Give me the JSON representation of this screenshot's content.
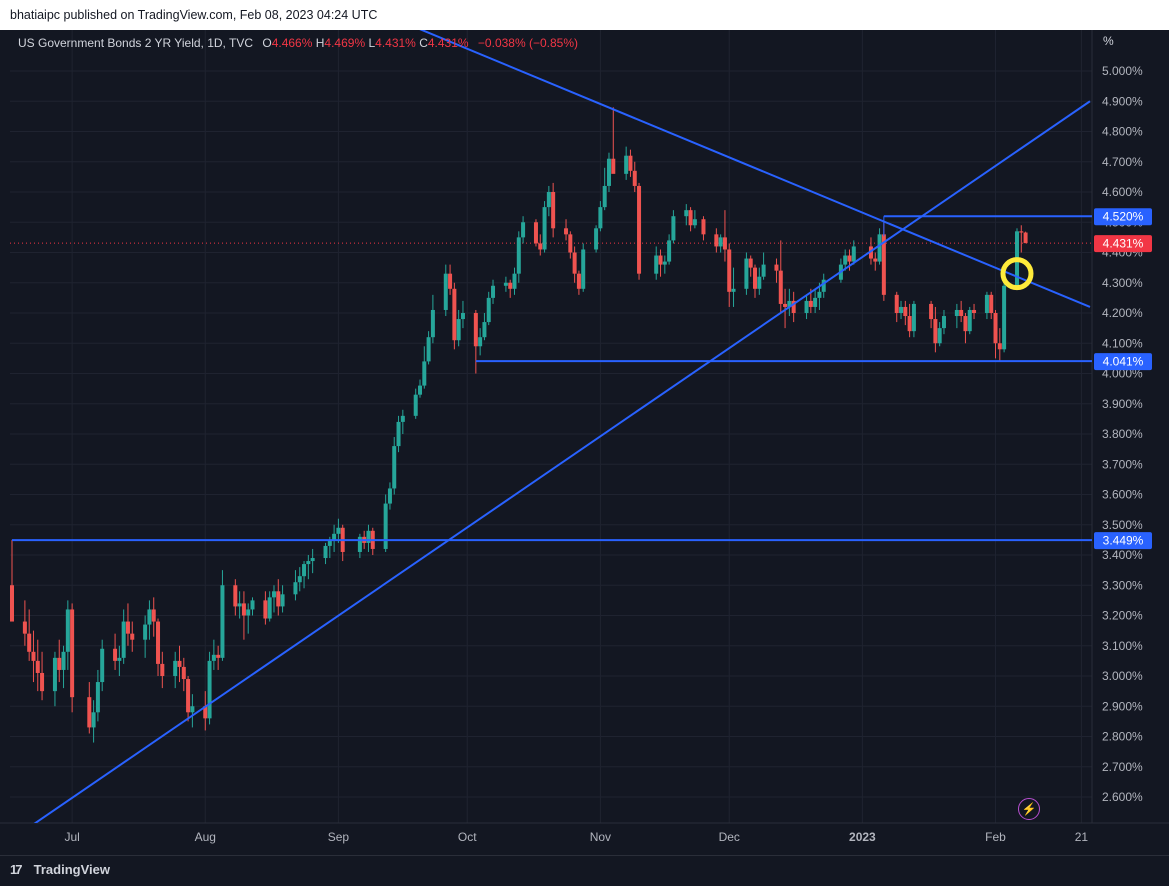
{
  "header": {
    "published": "bhatiaipc published on TradingView.com, Feb 08, 2023 04:24 UTC"
  },
  "legend": {
    "symbol": "US Government Bonds 2 YR Yield, 1D, TVC",
    "o_label": "O",
    "o_value": "4.466%",
    "h_label": "H",
    "h_value": "4.469%",
    "l_label": "L",
    "l_value": "4.431%",
    "c_label": "C",
    "c_value": "4.431%",
    "change": "−0.038% (−0.85%)"
  },
  "axis": {
    "unit": "%"
  },
  "footer": {
    "brand": "TradingView",
    "logo_mark": "17"
  },
  "colors": {
    "background": "#131722",
    "grid": "#1f2330",
    "up": "#26a69a",
    "down": "#ef5350",
    "trendline": "#2962ff",
    "highlight_circle": "#ffeb3b",
    "price_label_bg": "#f23645"
  },
  "chart_data": {
    "type": "candlestick",
    "title": "US Government Bonds 2 YR Yield, 1D, TVC",
    "ylabel": "%",
    "ylim": [
      2.52,
      5.15
    ],
    "y_ticks": [
      "5.000%",
      "4.900%",
      "4.800%",
      "4.700%",
      "4.600%",
      "4.500%",
      "4.400%",
      "4.300%",
      "4.200%",
      "4.100%",
      "4.000%",
      "3.900%",
      "3.800%",
      "3.700%",
      "3.600%",
      "3.500%",
      "3.400%",
      "3.300%",
      "3.200%",
      "3.100%",
      "3.000%",
      "2.900%",
      "2.800%",
      "2.700%",
      "2.600%"
    ],
    "y_tick_values": [
      5.0,
      4.9,
      4.8,
      4.7,
      4.6,
      4.5,
      4.4,
      4.3,
      4.2,
      4.1,
      4.0,
      3.9,
      3.8,
      3.7,
      3.6,
      3.5,
      3.4,
      3.3,
      3.2,
      3.1,
      3.0,
      2.9,
      2.8,
      2.7,
      2.6
    ],
    "x_ticks": [
      "Jul",
      "Aug",
      "Sep",
      "Oct",
      "Nov",
      "Dec",
      "2023",
      "Feb",
      "21"
    ],
    "x_tick_dates": [
      "2022-07-01",
      "2022-08-01",
      "2022-09-01",
      "2022-10-01",
      "2022-11-01",
      "2022-12-01",
      "2023-01-01",
      "2023-02-01",
      "2023-02-21"
    ],
    "x_range": [
      "2022-06-17",
      "2023-02-23"
    ],
    "grid": true,
    "candles": [
      [
        "2022-06-17",
        3.3,
        3.45,
        3.2,
        3.18
      ],
      [
        "2022-06-20",
        3.18,
        3.25,
        3.1,
        3.14
      ],
      [
        "2022-06-21",
        3.14,
        3.22,
        3.05,
        3.08
      ],
      [
        "2022-06-22",
        3.08,
        3.15,
        2.98,
        3.05
      ],
      [
        "2022-06-23",
        3.05,
        3.12,
        2.95,
        3.01
      ],
      [
        "2022-06-24",
        3.01,
        3.08,
        2.92,
        2.95
      ],
      [
        "2022-06-27",
        2.95,
        3.08,
        2.9,
        3.06
      ],
      [
        "2022-06-28",
        3.06,
        3.12,
        2.98,
        3.02
      ],
      [
        "2022-06-29",
        3.02,
        3.1,
        2.96,
        3.08
      ],
      [
        "2022-06-30",
        3.08,
        3.25,
        3.02,
        3.22
      ],
      [
        "2022-07-01",
        3.22,
        3.24,
        2.88,
        2.93
      ],
      [
        "2022-07-05",
        2.93,
        2.98,
        2.81,
        2.83
      ],
      [
        "2022-07-06",
        2.83,
        2.92,
        2.78,
        2.88
      ],
      [
        "2022-07-07",
        2.88,
        3.02,
        2.85,
        2.98
      ],
      [
        "2022-07-08",
        2.98,
        3.12,
        2.95,
        3.09
      ],
      [
        "2022-07-11",
        3.09,
        3.14,
        3.02,
        3.05
      ],
      [
        "2022-07-12",
        3.05,
        3.1,
        3.0,
        3.06
      ],
      [
        "2022-07-13",
        3.06,
        3.22,
        3.04,
        3.18
      ],
      [
        "2022-07-14",
        3.18,
        3.24,
        3.1,
        3.14
      ],
      [
        "2022-07-15",
        3.14,
        3.18,
        3.08,
        3.12
      ],
      [
        "2022-07-18",
        3.12,
        3.2,
        3.06,
        3.17
      ],
      [
        "2022-07-19",
        3.17,
        3.25,
        3.12,
        3.22
      ],
      [
        "2022-07-20",
        3.22,
        3.26,
        3.13,
        3.18
      ],
      [
        "2022-07-21",
        3.18,
        3.19,
        3.0,
        3.04
      ],
      [
        "2022-07-22",
        3.04,
        3.08,
        2.96,
        3.0
      ],
      [
        "2022-07-25",
        3.0,
        3.08,
        2.96,
        3.05
      ],
      [
        "2022-07-26",
        3.05,
        3.1,
        2.98,
        3.03
      ],
      [
        "2022-07-27",
        3.03,
        3.06,
        2.95,
        2.99
      ],
      [
        "2022-07-28",
        2.99,
        3.0,
        2.85,
        2.88
      ],
      [
        "2022-07-29",
        2.88,
        2.94,
        2.83,
        2.9
      ],
      [
        "2022-08-01",
        2.9,
        2.95,
        2.82,
        2.86
      ],
      [
        "2022-08-02",
        2.86,
        3.08,
        2.84,
        3.05
      ],
      [
        "2022-08-03",
        3.05,
        3.12,
        3.02,
        3.07
      ],
      [
        "2022-08-04",
        3.07,
        3.1,
        3.02,
        3.06
      ],
      [
        "2022-08-05",
        3.06,
        3.35,
        3.05,
        3.3
      ],
      [
        "2022-08-08",
        3.3,
        3.32,
        3.2,
        3.23
      ],
      [
        "2022-08-09",
        3.23,
        3.28,
        3.19,
        3.24
      ],
      [
        "2022-08-10",
        3.24,
        3.28,
        3.12,
        3.2
      ],
      [
        "2022-08-11",
        3.2,
        3.24,
        3.14,
        3.22
      ],
      [
        "2022-08-12",
        3.22,
        3.26,
        3.2,
        3.25
      ],
      [
        "2022-08-15",
        3.25,
        3.28,
        3.17,
        3.19
      ],
      [
        "2022-08-16",
        3.19,
        3.28,
        3.18,
        3.26
      ],
      [
        "2022-08-17",
        3.26,
        3.3,
        3.21,
        3.28
      ],
      [
        "2022-08-18",
        3.28,
        3.32,
        3.2,
        3.23
      ],
      [
        "2022-08-19",
        3.23,
        3.3,
        3.21,
        3.27
      ],
      [
        "2022-08-22",
        3.27,
        3.35,
        3.25,
        3.31
      ],
      [
        "2022-08-23",
        3.31,
        3.36,
        3.28,
        3.33
      ],
      [
        "2022-08-24",
        3.33,
        3.38,
        3.29,
        3.37
      ],
      [
        "2022-08-25",
        3.37,
        3.4,
        3.32,
        3.38
      ],
      [
        "2022-08-26",
        3.38,
        3.42,
        3.34,
        3.39
      ],
      [
        "2022-08-29",
        3.39,
        3.44,
        3.37,
        3.43
      ],
      [
        "2022-08-30",
        3.43,
        3.46,
        3.39,
        3.45
      ],
      [
        "2022-08-31",
        3.45,
        3.5,
        3.41,
        3.47
      ],
      [
        "2022-09-01",
        3.47,
        3.52,
        3.44,
        3.49
      ],
      [
        "2022-09-02",
        3.49,
        3.5,
        3.38,
        3.41
      ],
      [
        "2022-09-06",
        3.41,
        3.47,
        3.39,
        3.46
      ],
      [
        "2022-09-07",
        3.46,
        3.48,
        3.42,
        3.44
      ],
      [
        "2022-09-08",
        3.44,
        3.5,
        3.41,
        3.48
      ],
      [
        "2022-09-09",
        3.48,
        3.49,
        3.4,
        3.42
      ],
      [
        "2022-09-12",
        3.42,
        3.6,
        3.41,
        3.57
      ],
      [
        "2022-09-13",
        3.57,
        3.64,
        3.55,
        3.62
      ],
      [
        "2022-09-14",
        3.62,
        3.79,
        3.6,
        3.76
      ],
      [
        "2022-09-15",
        3.76,
        3.86,
        3.74,
        3.84
      ],
      [
        "2022-09-16",
        3.84,
        3.88,
        3.8,
        3.86
      ],
      [
        "2022-09-19",
        3.86,
        3.95,
        3.85,
        3.93
      ],
      [
        "2022-09-20",
        3.93,
        3.98,
        3.92,
        3.96
      ],
      [
        "2022-09-21",
        3.96,
        4.09,
        3.95,
        4.04
      ],
      [
        "2022-09-22",
        4.04,
        4.14,
        4.03,
        4.12
      ],
      [
        "2022-09-23",
        4.12,
        4.26,
        4.1,
        4.21
      ],
      [
        "2022-09-26",
        4.21,
        4.36,
        4.19,
        4.33
      ],
      [
        "2022-09-27",
        4.33,
        4.36,
        4.26,
        4.28
      ],
      [
        "2022-09-28",
        4.28,
        4.3,
        4.08,
        4.11
      ],
      [
        "2022-09-29",
        4.11,
        4.21,
        4.09,
        4.18
      ],
      [
        "2022-09-30",
        4.18,
        4.24,
        4.15,
        4.2
      ],
      [
        "2022-10-03",
        4.2,
        4.21,
        4.0,
        4.09
      ],
      [
        "2022-10-04",
        4.09,
        4.15,
        4.06,
        4.12
      ],
      [
        "2022-10-05",
        4.12,
        4.2,
        4.11,
        4.17
      ],
      [
        "2022-10-06",
        4.17,
        4.27,
        4.16,
        4.25
      ],
      [
        "2022-10-07",
        4.25,
        4.31,
        4.23,
        4.29
      ],
      [
        "2022-10-10",
        4.29,
        4.32,
        4.27,
        4.3
      ],
      [
        "2022-10-11",
        4.3,
        4.31,
        4.25,
        4.28
      ],
      [
        "2022-10-12",
        4.28,
        4.35,
        4.26,
        4.33
      ],
      [
        "2022-10-13",
        4.33,
        4.47,
        4.3,
        4.45
      ],
      [
        "2022-10-14",
        4.45,
        4.52,
        4.43,
        4.5
      ],
      [
        "2022-10-17",
        4.5,
        4.51,
        4.42,
        4.43
      ],
      [
        "2022-10-18",
        4.43,
        4.46,
        4.39,
        4.41
      ],
      [
        "2022-10-19",
        4.41,
        4.57,
        4.4,
        4.55
      ],
      [
        "2022-10-20",
        4.55,
        4.62,
        4.52,
        4.6
      ],
      [
        "2022-10-21",
        4.6,
        4.63,
        4.45,
        4.48
      ],
      [
        "2022-10-24",
        4.48,
        4.51,
        4.44,
        4.46
      ],
      [
        "2022-10-25",
        4.46,
        4.47,
        4.38,
        4.4
      ],
      [
        "2022-10-26",
        4.4,
        4.42,
        4.3,
        4.33
      ],
      [
        "2022-10-27",
        4.33,
        4.34,
        4.26,
        4.28
      ],
      [
        "2022-10-28",
        4.28,
        4.43,
        4.27,
        4.41
      ],
      [
        "2022-10-31",
        4.41,
        4.49,
        4.4,
        4.48
      ],
      [
        "2022-11-01",
        4.48,
        4.57,
        4.47,
        4.55
      ],
      [
        "2022-11-02",
        4.55,
        4.68,
        4.54,
        4.62
      ],
      [
        "2022-11-03",
        4.62,
        4.73,
        4.6,
        4.71
      ],
      [
        "2022-11-04",
        4.71,
        4.88,
        4.67,
        4.66
      ],
      [
        "2022-11-07",
        4.66,
        4.75,
        4.64,
        4.72
      ],
      [
        "2022-11-08",
        4.72,
        4.74,
        4.65,
        4.67
      ],
      [
        "2022-11-09",
        4.67,
        4.7,
        4.6,
        4.62
      ],
      [
        "2022-11-10",
        4.62,
        4.63,
        4.31,
        4.33
      ],
      [
        "2022-11-14",
        4.33,
        4.42,
        4.31,
        4.39
      ],
      [
        "2022-11-15",
        4.39,
        4.41,
        4.32,
        4.36
      ],
      [
        "2022-11-16",
        4.36,
        4.39,
        4.33,
        4.37
      ],
      [
        "2022-11-17",
        4.37,
        4.46,
        4.36,
        4.44
      ],
      [
        "2022-11-18",
        4.44,
        4.54,
        4.43,
        4.52
      ],
      [
        "2022-11-21",
        4.52,
        4.56,
        4.49,
        4.54
      ],
      [
        "2022-11-22",
        4.54,
        4.55,
        4.47,
        4.49
      ],
      [
        "2022-11-23",
        4.49,
        4.54,
        4.48,
        4.51
      ],
      [
        "2022-11-25",
        4.51,
        4.52,
        4.44,
        4.46
      ],
      [
        "2022-11-28",
        4.46,
        4.48,
        4.4,
        4.42
      ],
      [
        "2022-11-29",
        4.42,
        4.46,
        4.4,
        4.45
      ],
      [
        "2022-11-30",
        4.45,
        4.54,
        4.37,
        4.41
      ],
      [
        "2022-12-01",
        4.41,
        4.43,
        4.22,
        4.27
      ],
      [
        "2022-12-02",
        4.27,
        4.35,
        4.22,
        4.28
      ],
      [
        "2022-12-05",
        4.28,
        4.4,
        4.26,
        4.38
      ],
      [
        "2022-12-06",
        4.38,
        4.39,
        4.32,
        4.35
      ],
      [
        "2022-12-07",
        4.35,
        4.36,
        4.25,
        4.28
      ],
      [
        "2022-12-08",
        4.28,
        4.35,
        4.26,
        4.32
      ],
      [
        "2022-12-09",
        4.32,
        4.4,
        4.31,
        4.36
      ],
      [
        "2022-12-12",
        4.36,
        4.38,
        4.3,
        4.34
      ],
      [
        "2022-12-13",
        4.34,
        4.44,
        4.2,
        4.23
      ],
      [
        "2022-12-14",
        4.23,
        4.28,
        4.15,
        4.22
      ],
      [
        "2022-12-15",
        4.22,
        4.28,
        4.19,
        4.24
      ],
      [
        "2022-12-16",
        4.24,
        4.27,
        4.17,
        4.2
      ],
      [
        "2022-12-19",
        4.2,
        4.26,
        4.18,
        4.24
      ],
      [
        "2022-12-20",
        4.24,
        4.28,
        4.2,
        4.22
      ],
      [
        "2022-12-21",
        4.22,
        4.28,
        4.2,
        4.25
      ],
      [
        "2022-12-22",
        4.25,
        4.3,
        4.21,
        4.27
      ],
      [
        "2022-12-23",
        4.27,
        4.33,
        4.25,
        4.31
      ],
      [
        "2022-12-27",
        4.31,
        4.38,
        4.3,
        4.36
      ],
      [
        "2022-12-28",
        4.36,
        4.41,
        4.34,
        4.39
      ],
      [
        "2022-12-29",
        4.39,
        4.41,
        4.34,
        4.37
      ],
      [
        "2022-12-30",
        4.37,
        4.44,
        4.36,
        4.42
      ],
      [
        "2023-01-03",
        4.42,
        4.45,
        4.36,
        4.38
      ],
      [
        "2023-01-04",
        4.38,
        4.4,
        4.34,
        4.37
      ],
      [
        "2023-01-05",
        4.37,
        4.48,
        4.36,
        4.46
      ],
      [
        "2023-01-06",
        4.46,
        4.5,
        4.24,
        4.26
      ],
      [
        "2023-01-09",
        4.26,
        4.27,
        4.17,
        4.2
      ],
      [
        "2023-01-10",
        4.2,
        4.24,
        4.18,
        4.22
      ],
      [
        "2023-01-11",
        4.22,
        4.24,
        4.16,
        4.19
      ],
      [
        "2023-01-12",
        4.19,
        4.23,
        4.12,
        4.14
      ],
      [
        "2023-01-13",
        4.14,
        4.24,
        4.12,
        4.23
      ],
      [
        "2023-01-17",
        4.23,
        4.24,
        4.15,
        4.18
      ],
      [
        "2023-01-18",
        4.18,
        4.22,
        4.07,
        4.1
      ],
      [
        "2023-01-19",
        4.1,
        4.17,
        4.09,
        4.15
      ],
      [
        "2023-01-20",
        4.15,
        4.21,
        4.13,
        4.19
      ],
      [
        "2023-01-23",
        4.19,
        4.23,
        4.15,
        4.21
      ],
      [
        "2023-01-24",
        4.21,
        4.24,
        4.17,
        4.19
      ],
      [
        "2023-01-25",
        4.19,
        4.2,
        4.1,
        4.14
      ],
      [
        "2023-01-26",
        4.14,
        4.22,
        4.13,
        4.21
      ],
      [
        "2023-01-27",
        4.21,
        4.23,
        4.18,
        4.2
      ],
      [
        "2023-01-30",
        4.2,
        4.27,
        4.18,
        4.26
      ],
      [
        "2023-01-31",
        4.26,
        4.27,
        4.18,
        4.2
      ],
      [
        "2023-02-01",
        4.2,
        4.21,
        4.05,
        4.1
      ],
      [
        "2023-02-02",
        4.1,
        4.15,
        4.04,
        4.08
      ],
      [
        "2023-02-03",
        4.08,
        4.3,
        4.07,
        4.29
      ],
      [
        "2023-02-06",
        4.29,
        4.48,
        4.28,
        4.47
      ],
      [
        "2023-02-07",
        4.47,
        4.49,
        4.4,
        4.466
      ],
      [
        "2023-02-08",
        4.466,
        4.469,
        4.431,
        4.431
      ]
    ],
    "horizontal_levels": [
      {
        "value": 4.52,
        "label": "4.520%",
        "from": "2023-01-06"
      },
      {
        "value": 4.041,
        "label": "4.041%",
        "from": "2022-10-03"
      },
      {
        "value": 3.449,
        "label": "3.449%",
        "from": "2022-06-17"
      }
    ],
    "last_price": {
      "value": 4.431,
      "label": "4.431%"
    },
    "trendlines": [
      {
        "from": [
          "2022-06-21",
          2.5
        ],
        "to": [
          "2023-02-23",
          4.9
        ]
      },
      {
        "from": [
          "2022-09-01",
          5.25
        ],
        "to": [
          "2023-02-23",
          4.22
        ]
      }
    ],
    "highlight": {
      "date": "2023-02-06",
      "value": 4.33
    }
  }
}
